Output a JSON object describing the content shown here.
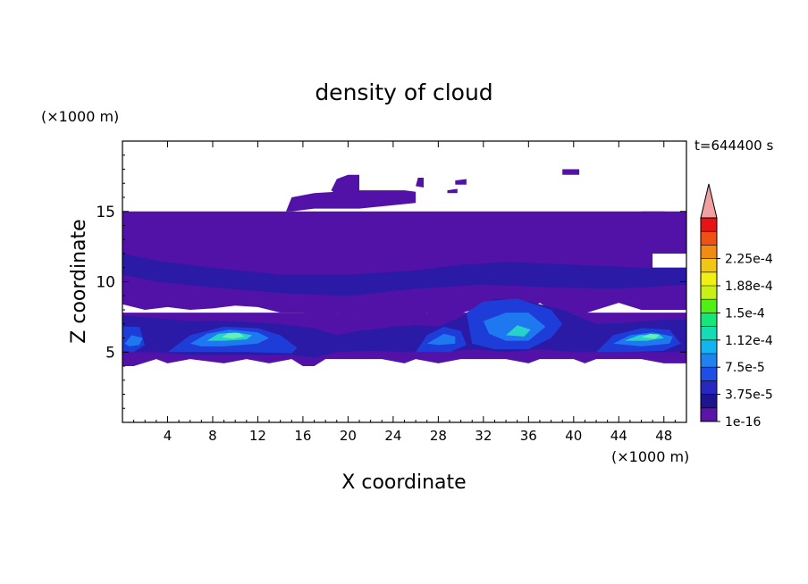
{
  "chart_data": {
    "type": "heatmap",
    "title": "density of cloud",
    "xlabel": "X coordinate",
    "ylabel": "Z coordinate",
    "x_unit": "(×1000 m)",
    "y_unit": "(×1000 m)",
    "time_label": "t=644400 s",
    "xlim": [
      0,
      50
    ],
    "ylim": [
      0,
      20
    ],
    "x_ticks": [
      4,
      8,
      12,
      16,
      20,
      24,
      28,
      32,
      36,
      40,
      44,
      48
    ],
    "y_ticks": [
      5,
      10,
      15
    ],
    "grid": false,
    "colorbar": {
      "labels": [
        "1e-16",
        "3.75e-5",
        "7.5e-5",
        "1.12e-4",
        "1.5e-4",
        "1.88e-4",
        "2.25e-4"
      ],
      "colors": [
        "#5a14a6",
        "#1e1490",
        "#2828c0",
        "#1e4ee6",
        "#1e82f0",
        "#14b4f0",
        "#14dcb4",
        "#14e678",
        "#50f014",
        "#c8f014",
        "#f0f014",
        "#f0c814",
        "#f08c14",
        "#f05014",
        "#e61414"
      ],
      "extend_color": "#f0a0a0"
    },
    "regions": [
      {
        "level": 0,
        "shape": [
          [
            0,
            15
          ],
          [
            50,
            15
          ],
          [
            50,
            12
          ],
          [
            47,
            12
          ],
          [
            47,
            11
          ],
          [
            50,
            11
          ],
          [
            50,
            8
          ],
          [
            46,
            8
          ],
          [
            44,
            8.5
          ],
          [
            42,
            8
          ],
          [
            40,
            7.5
          ],
          [
            38,
            8
          ],
          [
            37,
            8.5
          ],
          [
            36,
            8
          ],
          [
            33,
            7.5
          ],
          [
            31,
            8
          ],
          [
            29,
            7.5
          ],
          [
            27,
            7.8
          ],
          [
            25,
            7.5
          ],
          [
            24,
            7.2
          ],
          [
            23,
            7.5
          ],
          [
            22,
            7.2
          ],
          [
            21,
            7.8
          ],
          [
            20,
            7.5
          ],
          [
            19,
            7.8
          ],
          [
            18,
            7.5
          ],
          [
            16,
            7.8
          ],
          [
            14,
            7.8
          ],
          [
            12,
            8.2
          ],
          [
            10,
            8.3
          ],
          [
            8,
            8.1
          ],
          [
            6,
            8
          ],
          [
            4,
            8.2
          ],
          [
            2,
            8
          ],
          [
            0,
            8.4
          ]
        ]
      },
      {
        "level": 0,
        "shape": [
          [
            0,
            7.8
          ],
          [
            50,
            7.8
          ],
          [
            50,
            4.2
          ],
          [
            48,
            4.2
          ],
          [
            46,
            4.5
          ],
          [
            42,
            4.5
          ],
          [
            41,
            4.2
          ],
          [
            40,
            4.5
          ],
          [
            37,
            4.5
          ],
          [
            36,
            4.2
          ],
          [
            34,
            4.5
          ],
          [
            32,
            4.5
          ],
          [
            30,
            4.5
          ],
          [
            28,
            4.2
          ],
          [
            26,
            4.5
          ],
          [
            25,
            4.2
          ],
          [
            23,
            4.5
          ],
          [
            22,
            4.5
          ],
          [
            20,
            4.5
          ],
          [
            18,
            4.5
          ],
          [
            17,
            4
          ],
          [
            16,
            4
          ],
          [
            15,
            4.5
          ],
          [
            13,
            4.2
          ],
          [
            11,
            4.5
          ],
          [
            9,
            4.2
          ],
          [
            6,
            4.5
          ],
          [
            4,
            4.2
          ],
          [
            3,
            4.5
          ],
          [
            1,
            4
          ],
          [
            0,
            4
          ]
        ]
      },
      {
        "level": 0,
        "shape": [
          [
            14.5,
            15
          ],
          [
            15,
            16
          ],
          [
            17,
            16.3
          ],
          [
            21,
            16.5
          ],
          [
            25,
            16.5
          ],
          [
            26,
            16.4
          ],
          [
            26,
            15.6
          ],
          [
            21,
            15.2
          ],
          [
            17,
            15.2
          ],
          [
            15,
            15
          ]
        ]
      },
      {
        "level": 0,
        "shape": [
          [
            18.5,
            16.5
          ],
          [
            19,
            17.3
          ],
          [
            20,
            17.6
          ],
          [
            21,
            17.6
          ],
          [
            21,
            16.3
          ],
          [
            19,
            16.2
          ]
        ]
      },
      {
        "level": 0,
        "shape": [
          [
            26,
            16.8
          ],
          [
            26.2,
            17.4
          ],
          [
            26.7,
            17.4
          ],
          [
            26.7,
            16.7
          ]
        ]
      },
      {
        "level": 0,
        "shape": [
          [
            29.5,
            17.2
          ],
          [
            30.5,
            17.3
          ],
          [
            30.5,
            16.9
          ],
          [
            29.5,
            16.9
          ]
        ]
      },
      {
        "level": 0,
        "shape": [
          [
            28.8,
            16.5
          ],
          [
            29.7,
            16.6
          ],
          [
            29.7,
            16.3
          ],
          [
            28.8,
            16.3
          ]
        ]
      },
      {
        "level": 0,
        "shape": [
          [
            39,
            18
          ],
          [
            40.5,
            18
          ],
          [
            40.5,
            17.6
          ],
          [
            39,
            17.6
          ]
        ]
      },
      {
        "level": 0,
        "shape": [
          [
            45,
            14.5
          ],
          [
            46,
            15
          ],
          [
            48,
            15
          ],
          [
            50,
            14.8
          ],
          [
            50,
            12.5
          ],
          [
            47,
            12.5
          ],
          [
            45,
            13.5
          ]
        ]
      },
      {
        "level": 1,
        "shape": [
          [
            0,
            12
          ],
          [
            3,
            11.5
          ],
          [
            8,
            11
          ],
          [
            14,
            10.5
          ],
          [
            20,
            10.5
          ],
          [
            26,
            10.8
          ],
          [
            30,
            11.2
          ],
          [
            34,
            11.4
          ],
          [
            40,
            11.2
          ],
          [
            46,
            11
          ],
          [
            50,
            11
          ],
          [
            50,
            9.8
          ],
          [
            44,
            9.5
          ],
          [
            38,
            9.6
          ],
          [
            32,
            9.8
          ],
          [
            26,
            9.5
          ],
          [
            20,
            9
          ],
          [
            14,
            9.2
          ],
          [
            8,
            9.6
          ],
          [
            3,
            10
          ],
          [
            0,
            10.5
          ]
        ]
      },
      {
        "level": 1,
        "shape": [
          [
            0,
            7.6
          ],
          [
            3,
            7.4
          ],
          [
            6,
            7.2
          ],
          [
            10,
            7.2
          ],
          [
            14,
            7
          ],
          [
            17,
            6.7
          ],
          [
            19,
            6.2
          ],
          [
            21,
            6.5
          ],
          [
            24,
            6.8
          ],
          [
            26,
            6.9
          ],
          [
            28,
            6.8
          ],
          [
            30,
            7.5
          ],
          [
            33,
            8.8
          ],
          [
            36,
            8.6
          ],
          [
            39,
            8
          ],
          [
            42,
            7
          ],
          [
            45,
            7.1
          ],
          [
            48,
            7.3
          ],
          [
            50,
            7.3
          ],
          [
            50,
            5
          ],
          [
            46,
            5
          ],
          [
            43,
            5
          ],
          [
            40,
            5
          ],
          [
            37,
            5.2
          ],
          [
            34,
            5
          ],
          [
            31,
            5.2
          ],
          [
            28,
            5
          ],
          [
            25,
            5
          ],
          [
            22,
            5.1
          ],
          [
            19,
            5
          ],
          [
            17,
            4.6
          ],
          [
            15,
            4.8
          ],
          [
            12,
            4.8
          ],
          [
            9,
            4.8
          ],
          [
            6,
            4.8
          ],
          [
            3,
            5
          ],
          [
            0,
            5
          ]
        ]
      },
      {
        "level": 2,
        "shape": [
          [
            0,
            6.8
          ],
          [
            1.5,
            6.8
          ],
          [
            2,
            5.5
          ],
          [
            1,
            5
          ],
          [
            0,
            5
          ]
        ]
      },
      {
        "level": 2,
        "shape": [
          [
            4,
            5
          ],
          [
            6,
            6.2
          ],
          [
            9,
            6.8
          ],
          [
            12,
            6.7
          ],
          [
            14,
            6.2
          ],
          [
            15.5,
            5.3
          ],
          [
            15,
            4.9
          ],
          [
            11,
            5
          ],
          [
            7,
            5
          ],
          [
            4,
            5
          ]
        ]
      },
      {
        "level": 2,
        "shape": [
          [
            26,
            5
          ],
          [
            27,
            6.2
          ],
          [
            28.5,
            6.8
          ],
          [
            30,
            6.5
          ],
          [
            30.5,
            5.5
          ],
          [
            29,
            5
          ]
        ]
      },
      {
        "level": 2,
        "shape": [
          [
            30.5,
            7.8
          ],
          [
            32,
            8.6
          ],
          [
            35,
            8.8
          ],
          [
            38,
            8
          ],
          [
            39,
            7
          ],
          [
            38,
            6
          ],
          [
            36,
            5.2
          ],
          [
            33,
            5.2
          ],
          [
            31,
            5.6
          ]
        ]
      },
      {
        "level": 2,
        "shape": [
          [
            42,
            5
          ],
          [
            43.5,
            6.2
          ],
          [
            46,
            6.7
          ],
          [
            48.5,
            6.6
          ],
          [
            49.5,
            5.6
          ],
          [
            48,
            5.1
          ],
          [
            45,
            5
          ]
        ]
      },
      {
        "level": 3,
        "shape": [
          [
            0.2,
            5.6
          ],
          [
            0.8,
            6.2
          ],
          [
            1.8,
            6
          ],
          [
            1.5,
            5.5
          ],
          [
            0.6,
            5.4
          ]
        ]
      },
      {
        "level": 3,
        "shape": [
          [
            6,
            5.6
          ],
          [
            7.5,
            6.3
          ],
          [
            9.5,
            6.6
          ],
          [
            12,
            6.4
          ],
          [
            13,
            6
          ],
          [
            12,
            5.6
          ],
          [
            9,
            5.4
          ],
          [
            7,
            5.4
          ]
        ]
      },
      {
        "level": 3,
        "shape": [
          [
            27,
            5.6
          ],
          [
            28.5,
            6.3
          ],
          [
            29.5,
            6.1
          ],
          [
            29.5,
            5.6
          ],
          [
            28,
            5.5
          ]
        ]
      },
      {
        "level": 3,
        "shape": [
          [
            32,
            7.2
          ],
          [
            34,
            7.8
          ],
          [
            36,
            7.8
          ],
          [
            37.5,
            6.8
          ],
          [
            36,
            5.8
          ],
          [
            34,
            5.8
          ],
          [
            32.5,
            6.3
          ]
        ]
      },
      {
        "level": 3,
        "shape": [
          [
            43.5,
            5.6
          ],
          [
            45,
            6.2
          ],
          [
            47,
            6.4
          ],
          [
            48.8,
            6.1
          ],
          [
            48.5,
            5.6
          ],
          [
            46,
            5.4
          ]
        ]
      },
      {
        "level": 4,
        "shape": [
          [
            7.5,
            5.8
          ],
          [
            8.5,
            6.3
          ],
          [
            10,
            6.4
          ],
          [
            11.5,
            6.2
          ],
          [
            11,
            5.9
          ],
          [
            9,
            5.8
          ]
        ]
      },
      {
        "level": 4,
        "shape": [
          [
            44.5,
            5.8
          ],
          [
            45.8,
            6.2
          ],
          [
            47.5,
            6.3
          ],
          [
            48,
            6
          ],
          [
            46.5,
            5.8
          ]
        ]
      },
      {
        "level": 4,
        "shape": [
          [
            34,
            6.2
          ],
          [
            35,
            6.9
          ],
          [
            36.2,
            6.6
          ],
          [
            35.6,
            6.1
          ]
        ]
      },
      {
        "level": 5,
        "shape": [
          [
            8.8,
            6.05
          ],
          [
            9.4,
            6.35
          ],
          [
            10.4,
            6.35
          ],
          [
            10.8,
            6.1
          ],
          [
            9.8,
            5.95
          ]
        ]
      },
      {
        "level": 5,
        "shape": [
          [
            46,
            6.05
          ],
          [
            46.8,
            6.3
          ],
          [
            47.6,
            6.2
          ],
          [
            47.2,
            5.95
          ]
        ]
      }
    ]
  }
}
